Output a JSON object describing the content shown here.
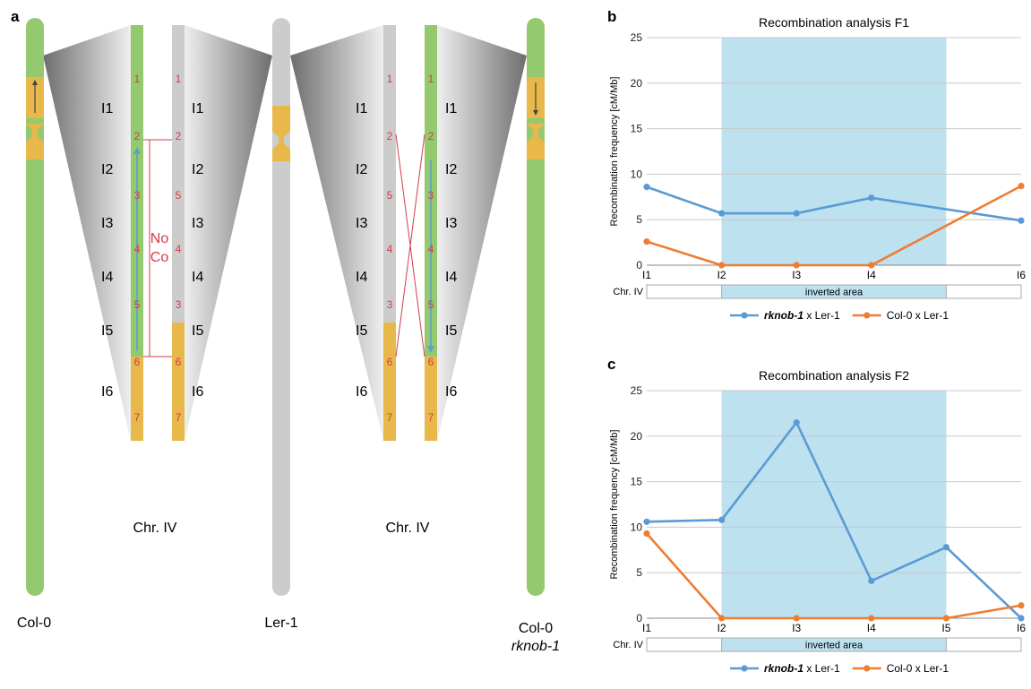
{
  "panels": {
    "a": "a",
    "b": "b",
    "c": "c"
  },
  "panel_a": {
    "interval_labels": [
      "I1",
      "I2",
      "I3",
      "I4",
      "I5",
      "I6"
    ],
    "marker_order_col0": [
      "1",
      "2",
      "3",
      "4",
      "5",
      "6",
      "7"
    ],
    "marker_order_ler_left": [
      "1",
      "2",
      "5",
      "4",
      "3",
      "6",
      "7"
    ],
    "marker_order_ler_right": [
      "1",
      "2",
      "5",
      "4",
      "3",
      "6",
      "7"
    ],
    "marker_order_rknob": [
      "1",
      "2",
      "3",
      "4",
      "5",
      "6",
      "7"
    ],
    "chr_label": "Chr. IV",
    "no_co_line1": "No",
    "no_co_line2": "Co",
    "strain_col0": "Col-0",
    "strain_ler": "Ler-1",
    "strain_rknob_line1": "Col-0",
    "strain_rknob_line2": "rknob-1",
    "colors": {
      "green": "#95c96f",
      "gray": "#cccccc",
      "yellow": "#e8b84a",
      "red": "#d63b4a",
      "arrow": "#5aa0c8"
    }
  },
  "chart_data": [
    {
      "type": "line",
      "title": "Recombination analysis F1",
      "ylabel": "Recombination frequency [cM/Mb]",
      "ylim": [
        0,
        25
      ],
      "yticks": [
        0,
        5,
        10,
        15,
        20,
        25
      ],
      "grid": true,
      "x_ticks": [
        "I1",
        "I2",
        "I3",
        "I4",
        "I6"
      ],
      "x_positions": [
        0,
        1,
        2,
        3,
        5
      ],
      "x_range": [
        0,
        5
      ],
      "highlight": {
        "from": 1,
        "to": 4,
        "color": "#bde1ef"
      },
      "bar_label": "Chr. IV",
      "bar_text": "inverted area",
      "series": [
        {
          "name": "rknob-1",
          "legend_suffix": " x Ler-1",
          "color": "#5b9bd5",
          "x": [
            0,
            1,
            2,
            3,
            5
          ],
          "values": [
            8.6,
            5.7,
            5.7,
            7.4,
            4.9
          ]
        },
        {
          "name": "Col-0 x Ler-1",
          "legend_suffix": "",
          "color": "#ed7d31",
          "x": [
            0,
            1,
            2,
            3,
            5
          ],
          "values": [
            2.6,
            0,
            0,
            0,
            8.7
          ]
        }
      ],
      "legend": "bottom"
    },
    {
      "type": "line",
      "title": "Recombination analysis F2",
      "ylabel": "Recombination frequency [cM/Mb]",
      "ylim": [
        0,
        25
      ],
      "yticks": [
        0,
        5,
        10,
        15,
        20,
        25
      ],
      "grid": true,
      "x_ticks": [
        "I1",
        "I2",
        "I3",
        "I4",
        "I5",
        "I6"
      ],
      "x_positions": [
        0,
        1,
        2,
        3,
        4,
        5
      ],
      "x_range": [
        0,
        5
      ],
      "highlight": {
        "from": 1,
        "to": 4,
        "color": "#bde1ef"
      },
      "bar_label": "Chr. IV",
      "bar_text": "inverted area",
      "series": [
        {
          "name": "rknob-1",
          "legend_suffix": " x Ler-1",
          "color": "#5b9bd5",
          "x": [
            0,
            1,
            2,
            3,
            4,
            5
          ],
          "values": [
            10.6,
            10.8,
            21.5,
            4.1,
            7.8,
            0
          ]
        },
        {
          "name": "Col-0 x Ler-1",
          "legend_suffix": "",
          "color": "#ed7d31",
          "x": [
            0,
            1,
            2,
            3,
            4,
            5
          ],
          "values": [
            9.3,
            0,
            0,
            0,
            0,
            1.4
          ]
        }
      ],
      "legend": "bottom"
    }
  ]
}
